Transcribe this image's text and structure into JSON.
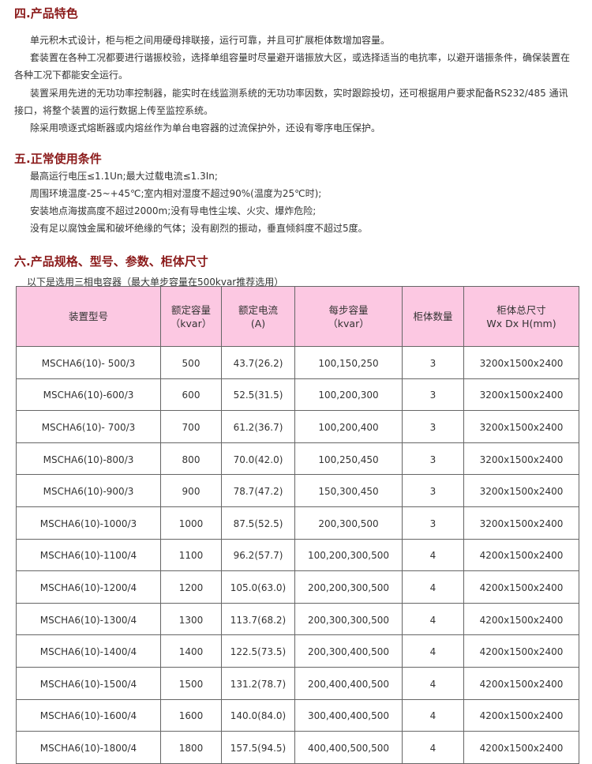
{
  "section4": {
    "title": "四.产品特色",
    "paragraphs": [
      "单元积木式设计，柜与柜之间用硬母排联接，运行可靠，并且可扩展柜体数增加容量。",
      "套装置在各种工况都要进行谐振校验，选择单组容量时尽量避开谐振放大区，或选择适当的电抗率，以避开谐振条件，确保装置在",
      "各种工况下都能安全运行。",
      "装置采用先进的无功功率控制器，能实时在线监测系统的无功功率因数，实时跟踪投切，还可根据用户要求配备RS232/485 通讯",
      "接口，将整个装置的运行数据上传至监控系统。",
      "除采用喷逐式熔断器或内熔丝作为单台电容器的过流保护外，还设有零序电压保护。"
    ]
  },
  "section5": {
    "title": "五.正常使用条件",
    "lines": [
      "最高运行电压≤1.1Un;最大过载电流≤1.3In;",
      "周围环境温度-25~+45℃;室内相对湿度不超过90%(温度为25℃时);",
      "安装地点海拔高度不超过2000m;没有导电性尘埃、火灾、爆炸危险;",
      "没有足以腐蚀金属和破坏绝缘的气体；没有剧烈的振动，垂直倾斜度不超过5度。"
    ]
  },
  "section6": {
    "title": "六.产品规格、型号、参数、柜体尺寸",
    "note": "以下是选用三相电容器（最大单步容量在500kvar推荐选用）"
  },
  "table": {
    "header_color": "#fcc8e2",
    "headers": [
      [
        "装置型号",
        ""
      ],
      [
        "额定容量",
        "（kvar）"
      ],
      [
        "额定电流",
        "(A)"
      ],
      [
        "每步容量",
        "（kvar）"
      ],
      [
        "柜体数量",
        ""
      ],
      [
        "柜体总尺寸",
        "Wx Dx H(mm)"
      ]
    ],
    "rows": [
      [
        "MSCHA6(10)- 500/3",
        "500",
        "43.7(26.2)",
        "100,150,250",
        "3",
        "3200x1500x2400"
      ],
      [
        "MSCHA6(10)-600/3",
        "600",
        "52.5(31.5)",
        "100,200,300",
        "3",
        "3200x1500x2400"
      ],
      [
        "MSCHA6(10)- 700/3",
        "700",
        "61.2(36.7)",
        "100,200,400",
        "3",
        "3200x1500x2400"
      ],
      [
        "MSCHA6(10)-800/3",
        "800",
        "70.0(42.0)",
        "100,250,450",
        "3",
        "3200x1500x2400"
      ],
      [
        "MSCHA6(10)-900/3",
        "900",
        "78.7(47.2)",
        "150,300,450",
        "3",
        "3200x1500x2400"
      ],
      [
        "MSCHA6(10)-1000/3",
        "1000",
        "87.5(52.5)",
        "200,300,500",
        "3",
        "3200x1500x2400"
      ],
      [
        "MSCHA6(10)-1100/4",
        "1100",
        "96.2(57.7)",
        "100,200,300,500",
        "4",
        "4200x1500x2400"
      ],
      [
        "MSCHA6(10)-1200/4",
        "1200",
        "105.0(63.0)",
        "200,200,300,500",
        "4",
        "4200x1500x2400"
      ],
      [
        "MSCHA6(10)-1300/4",
        "1300",
        "113.7(68.2)",
        "200,300,300,500",
        "4",
        "4200x1500x2400"
      ],
      [
        "MSCHA6(10)-1400/4",
        "1400",
        "122.5(73.5)",
        "200,300,400,500",
        "4",
        "4200x1500x2400"
      ],
      [
        "MSCHA6(10)-1500/4",
        "1500",
        "131.2(78.7)",
        "200,400,400,500",
        "4",
        "4200x1500x2400"
      ],
      [
        "MSCHA6(10)-1600/4",
        "1600",
        "140.0(84.0)",
        "300,400,400,500",
        "4",
        "4200x1500x2400"
      ],
      [
        "MSCHA6(10)-1800/4",
        "1800",
        "157.5(94.5)",
        "400,400,500,500",
        "4",
        "4200x1500x2400"
      ]
    ]
  }
}
